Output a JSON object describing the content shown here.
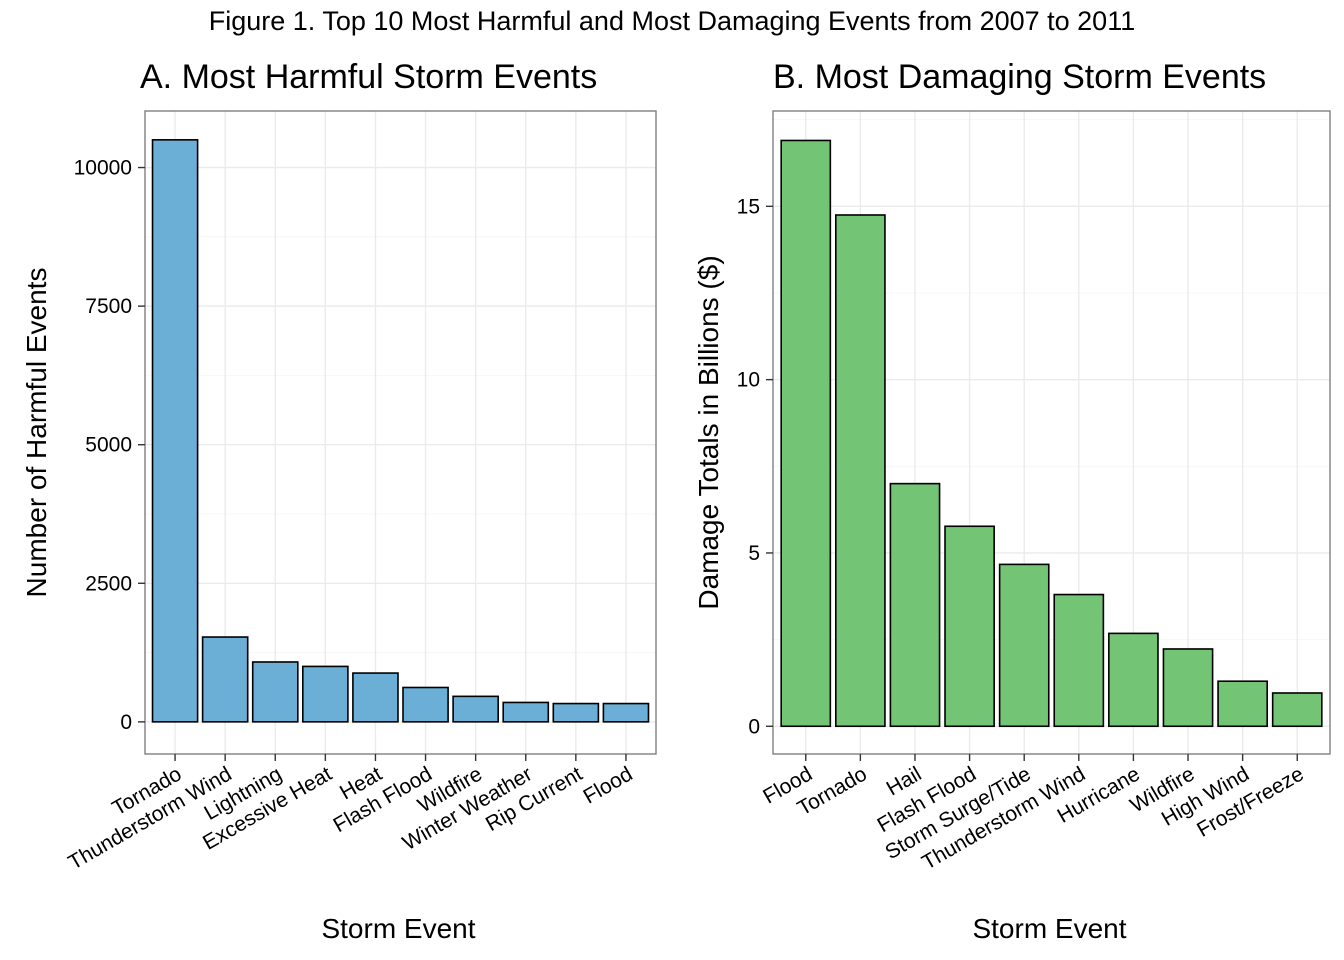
{
  "figure_title": "Figure 1. Top 10 Most Harmful and Most Damaging Events from 2007 to 2011",
  "chart_data": [
    {
      "type": "bar",
      "title": "A. Most Harmful Storm Events",
      "xlabel": "Storm Event",
      "ylabel": "Number of Harmful Events",
      "categories": [
        "Tornado",
        "Thunderstorm Wind",
        "Lightning",
        "Excessive Heat",
        "Heat",
        "Flash Flood",
        "Wildfire",
        "Winter Weather",
        "Rip Current",
        "Flood"
      ],
      "values": [
        10500,
        1530,
        1080,
        1000,
        880,
        620,
        460,
        350,
        330,
        330
      ],
      "ylim": [
        -580,
        11020
      ],
      "yticks": [
        0,
        2500,
        5000,
        7500,
        10000
      ],
      "ytick_labels": [
        "0",
        "2500",
        "5000",
        "7500",
        "10000"
      ],
      "bar_color": "#6baed6",
      "grid": true
    },
    {
      "type": "bar",
      "title": "B. Most Damaging Storm Events",
      "xlabel": "Storm Event",
      "ylabel": "Damage Totals in Billions ($)",
      "categories": [
        "Flood",
        "Tornado",
        "Hail",
        "Flash Flood",
        "Storm Surge/Tide",
        "Thunderstorm Wind",
        "Hurricane",
        "Wildfire",
        "High Wind",
        "Frost/Freeze"
      ],
      "values": [
        16.9,
        14.75,
        7.0,
        5.77,
        4.67,
        3.8,
        2.68,
        2.23,
        1.3,
        0.96
      ],
      "ylim": [
        -0.8,
        17.75
      ],
      "yticks": [
        0,
        5,
        10,
        15
      ],
      "ytick_labels": [
        "0",
        "5",
        "10",
        "15"
      ],
      "bar_color": "#74c476",
      "grid": true
    }
  ]
}
